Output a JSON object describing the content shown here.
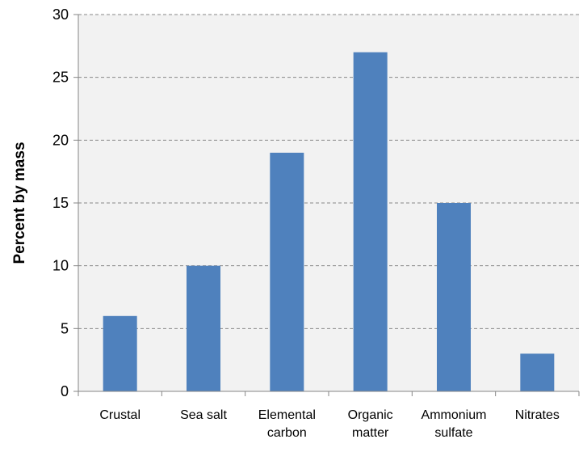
{
  "chart_data": {
    "type": "bar",
    "categories": [
      [
        "Crustal"
      ],
      [
        "Sea salt"
      ],
      [
        "Elemental",
        "carbon"
      ],
      [
        "Organic",
        "matter"
      ],
      [
        "Ammonium",
        "sulfate"
      ],
      [
        "Nitrates"
      ]
    ],
    "values": [
      6,
      10,
      19,
      27,
      15,
      3
    ],
    "title": "",
    "xlabel": "",
    "ylabel": "Percent by mass",
    "ylim": [
      0,
      30
    ],
    "yticks": [
      0,
      5,
      10,
      15,
      20,
      25,
      30
    ],
    "grid": "horizontal dashed",
    "legend": "none",
    "colors": {
      "bar": "#4f81bd",
      "plot_background": "#f2f2f2",
      "gridline": "#888888",
      "axis": "#868686"
    }
  }
}
